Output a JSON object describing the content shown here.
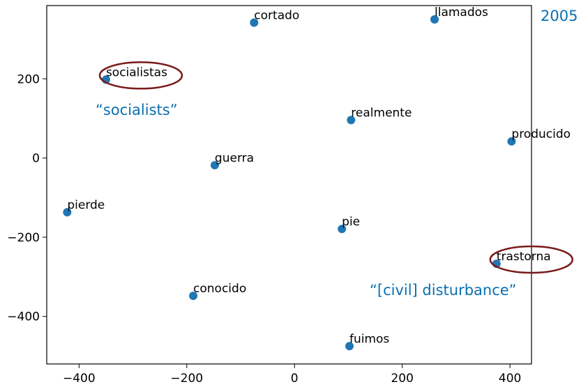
{
  "chart_data": {
    "type": "scatter",
    "title": "",
    "xlabel": "",
    "ylabel": "",
    "xlim": [
      -460,
      440
    ],
    "ylim": [
      -520,
      385
    ],
    "xticks": [
      -400,
      -200,
      0,
      200,
      400
    ],
    "yticks": [
      200,
      0,
      -200,
      -400
    ],
    "xtick_labels": [
      "−400",
      "−200",
      "0",
      "200",
      "400"
    ],
    "ytick_labels": [
      "200",
      "0",
      "−200",
      "−400"
    ],
    "marker_color": "#1f77b4",
    "grid": false,
    "points": [
      {
        "label": "cortado",
        "x": -75,
        "y": 342
      },
      {
        "label": "llamados",
        "x": 260,
        "y": 350
      },
      {
        "label": "socialistas",
        "x": -350,
        "y": 198
      },
      {
        "label": "realmente",
        "x": 105,
        "y": 96
      },
      {
        "label": "producido",
        "x": 403,
        "y": 42
      },
      {
        "label": "guerra",
        "x": -148,
        "y": -18
      },
      {
        "label": "pierde",
        "x": -422,
        "y": -137
      },
      {
        "label": "pie",
        "x": 88,
        "y": -179
      },
      {
        "label": "trastorna",
        "x": 375,
        "y": -267
      },
      {
        "label": "conocido",
        "x": -188,
        "y": -348
      },
      {
        "label": "fuimos",
        "x": 102,
        "y": -475
      }
    ],
    "annotations": {
      "year": {
        "text": "2005",
        "color": "#0a6fb3"
      },
      "socialists": {
        "text": "“socialists”",
        "color": "#0a6fb3",
        "target": "socialistas"
      },
      "disturbance": {
        "text": "“[civil] disturbance”",
        "color": "#0a6fb3",
        "target": "trastorna"
      },
      "circle_color": "#7a1a1a"
    }
  }
}
